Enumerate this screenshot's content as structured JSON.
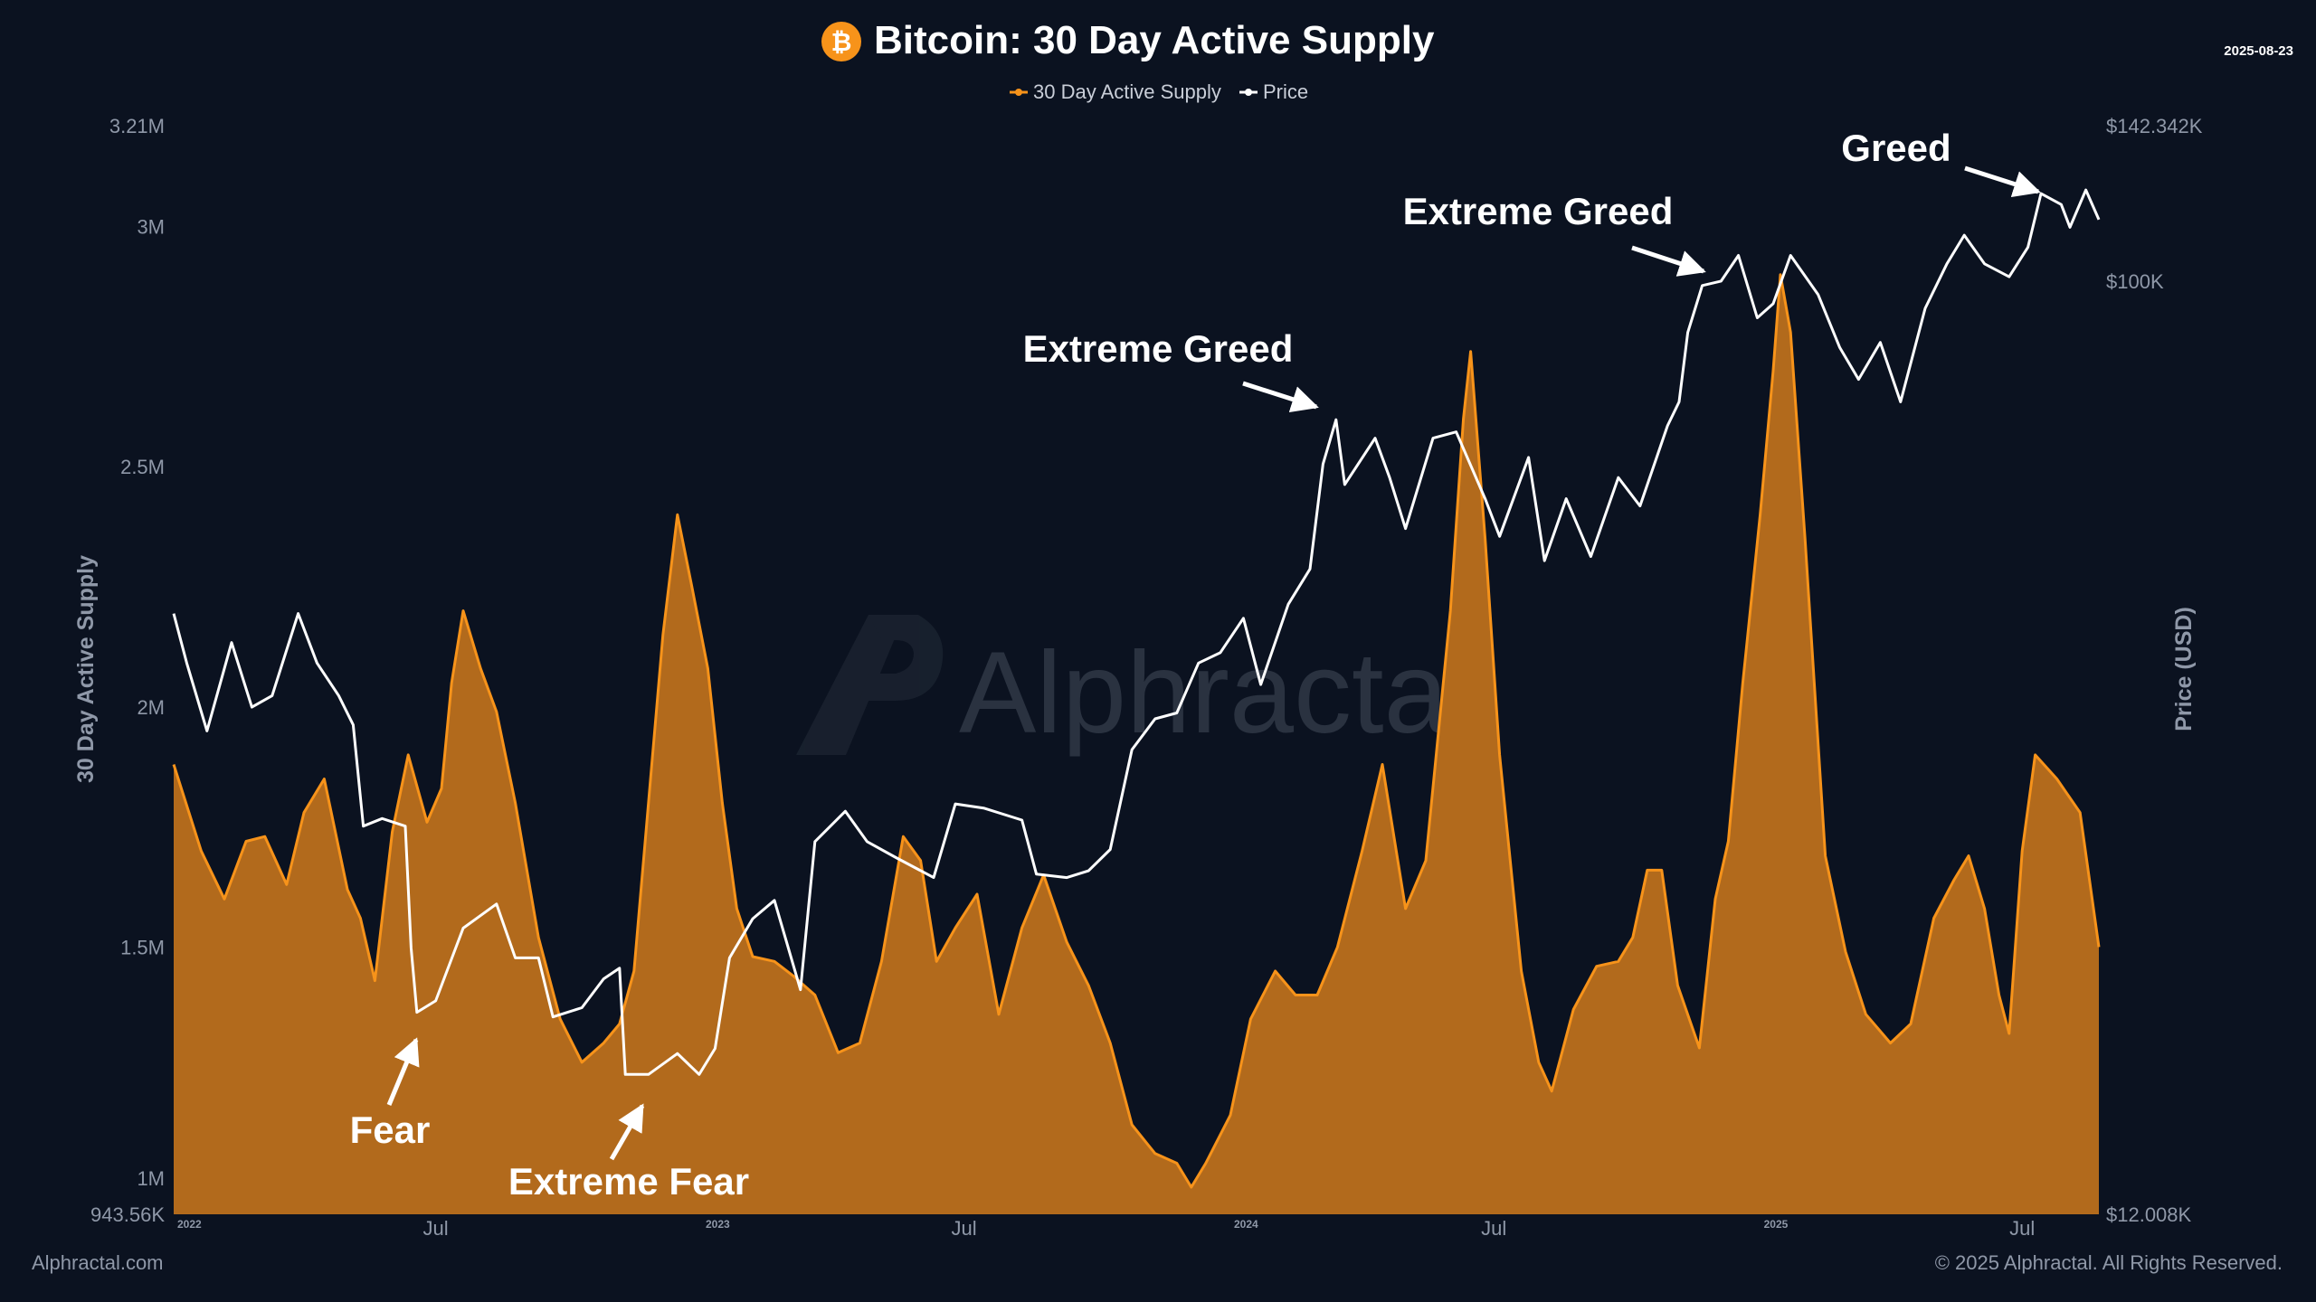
{
  "header": {
    "title": "Bitcoin: 30 Day Active Supply",
    "date": "2025-08-23",
    "icon": "bitcoin-icon"
  },
  "footer": {
    "left": "Alphractal.com",
    "right": "© 2025 Alphractal. All Rights Reserved."
  },
  "watermark": "Alphractal",
  "colors": {
    "background": "#0b1220",
    "supply": "#f7931a",
    "supply_fill": "#b26a1c",
    "price": "#ffffff",
    "axis_text": "#8f98a8"
  },
  "chart_data": {
    "type": "area",
    "title": "Bitcoin: 30 Day Active Supply",
    "ylabel": "30 Day Active Supply",
    "y2label": "Price (USD)",
    "y_ticks": [
      "3.21M",
      "3M",
      "2.5M",
      "2M",
      "1.5M",
      "1M",
      "943.56K"
    ],
    "y_tick_values": [
      3210000,
      3000000,
      2500000,
      2000000,
      1500000,
      1000000,
      943560
    ],
    "ylim": [
      943560,
      3210000
    ],
    "y2_ticks": [
      "$142.342K",
      "$100K",
      "$12.008K"
    ],
    "y2_tick_values": [
      142342,
      100000,
      12008
    ],
    "y2lim": [
      12008,
      142342
    ],
    "y2_scale": "log",
    "x_ticks": [
      "2022",
      "Jul",
      "2023",
      "Jul",
      "2024",
      "Jul",
      "2025",
      "Jul"
    ],
    "x_tick_dates": [
      "2022-01-01",
      "2022-07-01",
      "2023-01-01",
      "2023-07-01",
      "2024-01-01",
      "2024-07-01",
      "2025-01-01",
      "2025-07-01"
    ],
    "xlim": [
      "2022-01-01",
      "2025-08-23"
    ],
    "legend": {
      "placement": "top-center",
      "entries": [
        "30 Day Active Supply",
        "Price"
      ]
    },
    "grid": false,
    "series": [
      {
        "name": "30 Day Active Supply",
        "type": "area",
        "color": "#f7931a",
        "points": [
          [
            "2022-01-01",
            1880000
          ],
          [
            "2022-01-20",
            1700000
          ],
          [
            "2022-02-05",
            1600000
          ],
          [
            "2022-02-20",
            1720000
          ],
          [
            "2022-03-05",
            1730000
          ],
          [
            "2022-03-20",
            1630000
          ],
          [
            "2022-04-01",
            1780000
          ],
          [
            "2022-04-15",
            1850000
          ],
          [
            "2022-05-01",
            1620000
          ],
          [
            "2022-05-10",
            1560000
          ],
          [
            "2022-05-20",
            1430000
          ],
          [
            "2022-06-01",
            1740000
          ],
          [
            "2022-06-12",
            1900000
          ],
          [
            "2022-06-25",
            1760000
          ],
          [
            "2022-07-05",
            1830000
          ],
          [
            "2022-07-12",
            2050000
          ],
          [
            "2022-07-20",
            2200000
          ],
          [
            "2022-08-01",
            2080000
          ],
          [
            "2022-08-12",
            1990000
          ],
          [
            "2022-08-25",
            1800000
          ],
          [
            "2022-09-10",
            1520000
          ],
          [
            "2022-09-25",
            1350000
          ],
          [
            "2022-10-10",
            1260000
          ],
          [
            "2022-10-25",
            1300000
          ],
          [
            "2022-11-05",
            1340000
          ],
          [
            "2022-11-15",
            1450000
          ],
          [
            "2022-11-25",
            1800000
          ],
          [
            "2022-12-05",
            2150000
          ],
          [
            "2022-12-15",
            2400000
          ],
          [
            "2022-12-25",
            2250000
          ],
          [
            "2023-01-05",
            2080000
          ],
          [
            "2023-01-15",
            1800000
          ],
          [
            "2023-01-25",
            1580000
          ],
          [
            "2023-02-05",
            1480000
          ],
          [
            "2023-02-20",
            1470000
          ],
          [
            "2023-03-05",
            1440000
          ],
          [
            "2023-03-20",
            1400000
          ],
          [
            "2023-04-05",
            1280000
          ],
          [
            "2023-04-20",
            1300000
          ],
          [
            "2023-05-05",
            1470000
          ],
          [
            "2023-05-20",
            1730000
          ],
          [
            "2023-06-01",
            1680000
          ],
          [
            "2023-06-12",
            1470000
          ],
          [
            "2023-06-25",
            1540000
          ],
          [
            "2023-07-10",
            1610000
          ],
          [
            "2023-07-25",
            1360000
          ],
          [
            "2023-08-10",
            1540000
          ],
          [
            "2023-08-25",
            1650000
          ],
          [
            "2023-09-10",
            1510000
          ],
          [
            "2023-09-25",
            1420000
          ],
          [
            "2023-10-10",
            1300000
          ],
          [
            "2023-10-25",
            1130000
          ],
          [
            "2023-11-10",
            1070000
          ],
          [
            "2023-11-25",
            1050000
          ],
          [
            "2023-12-05",
            1000000
          ],
          [
            "2023-12-15",
            1050000
          ],
          [
            "2024-01-01",
            1150000
          ],
          [
            "2024-01-15",
            1350000
          ],
          [
            "2024-02-01",
            1450000
          ],
          [
            "2024-02-15",
            1400000
          ],
          [
            "2024-03-01",
            1400000
          ],
          [
            "2024-03-15",
            1500000
          ],
          [
            "2024-04-01",
            1700000
          ],
          [
            "2024-04-15",
            1880000
          ],
          [
            "2024-05-01",
            1580000
          ],
          [
            "2024-05-15",
            1680000
          ],
          [
            "2024-06-01",
            2200000
          ],
          [
            "2024-06-10",
            2600000
          ],
          [
            "2024-06-15",
            2740000
          ],
          [
            "2024-06-25",
            2350000
          ],
          [
            "2024-07-05",
            1900000
          ],
          [
            "2024-07-20",
            1450000
          ],
          [
            "2024-08-01",
            1260000
          ],
          [
            "2024-08-10",
            1200000
          ],
          [
            "2024-08-25",
            1370000
          ],
          [
            "2024-09-10",
            1460000
          ],
          [
            "2024-09-25",
            1470000
          ],
          [
            "2024-10-05",
            1520000
          ],
          [
            "2024-10-15",
            1660000
          ],
          [
            "2024-10-25",
            1660000
          ],
          [
            "2024-11-05",
            1420000
          ],
          [
            "2024-11-20",
            1290000
          ],
          [
            "2024-12-01",
            1600000
          ],
          [
            "2024-12-10",
            1720000
          ],
          [
            "2024-12-20",
            2050000
          ],
          [
            "2025-01-01",
            2400000
          ],
          [
            "2025-01-10",
            2700000
          ],
          [
            "2025-01-15",
            2900000
          ],
          [
            "2025-01-22",
            2780000
          ],
          [
            "2025-02-01",
            2350000
          ],
          [
            "2025-02-15",
            1690000
          ],
          [
            "2025-03-01",
            1490000
          ],
          [
            "2025-03-15",
            1360000
          ],
          [
            "2025-04-01",
            1300000
          ],
          [
            "2025-04-15",
            1340000
          ],
          [
            "2025-05-01",
            1560000
          ],
          [
            "2025-05-15",
            1640000
          ],
          [
            "2025-05-25",
            1690000
          ],
          [
            "2025-06-05",
            1580000
          ],
          [
            "2025-06-15",
            1400000
          ],
          [
            "2025-06-22",
            1320000
          ],
          [
            "2025-07-01",
            1700000
          ],
          [
            "2025-07-10",
            1900000
          ],
          [
            "2025-07-25",
            1850000
          ],
          [
            "2025-08-10",
            1780000
          ],
          [
            "2025-08-23",
            1500000
          ]
        ]
      },
      {
        "name": "Price",
        "type": "line",
        "color": "#ffffff",
        "axis": "right",
        "points": [
          [
            "2022-01-01",
            47000
          ],
          [
            "2022-01-10",
            42000
          ],
          [
            "2022-01-24",
            36000
          ],
          [
            "2022-02-10",
            44000
          ],
          [
            "2022-02-24",
            38000
          ],
          [
            "2022-03-10",
            39000
          ],
          [
            "2022-03-28",
            47000
          ],
          [
            "2022-04-10",
            42000
          ],
          [
            "2022-04-25",
            39000
          ],
          [
            "2022-05-05",
            36500
          ],
          [
            "2022-05-12",
            29000
          ],
          [
            "2022-05-25",
            29500
          ],
          [
            "2022-06-10",
            29000
          ],
          [
            "2022-06-14",
            22000
          ],
          [
            "2022-06-18",
            19000
          ],
          [
            "2022-07-01",
            19500
          ],
          [
            "2022-07-20",
            23000
          ],
          [
            "2022-08-12",
            24300
          ],
          [
            "2022-08-25",
            21500
          ],
          [
            "2022-09-10",
            21500
          ],
          [
            "2022-09-20",
            18800
          ],
          [
            "2022-10-10",
            19200
          ],
          [
            "2022-10-25",
            20500
          ],
          [
            "2022-11-05",
            21000
          ],
          [
            "2022-11-09",
            16500
          ],
          [
            "2022-11-25",
            16500
          ],
          [
            "2022-12-15",
            17300
          ],
          [
            "2022-12-30",
            16500
          ],
          [
            "2023-01-10",
            17500
          ],
          [
            "2023-01-20",
            21500
          ],
          [
            "2023-02-05",
            23500
          ],
          [
            "2023-02-20",
            24500
          ],
          [
            "2023-03-10",
            20000
          ],
          [
            "2023-03-20",
            28000
          ],
          [
            "2023-04-10",
            30000
          ],
          [
            "2023-04-25",
            28000
          ],
          [
            "2023-05-15",
            27000
          ],
          [
            "2023-06-10",
            25800
          ],
          [
            "2023-06-25",
            30500
          ],
          [
            "2023-07-15",
            30200
          ],
          [
            "2023-08-10",
            29400
          ],
          [
            "2023-08-20",
            26000
          ],
          [
            "2023-09-10",
            25800
          ],
          [
            "2023-09-25",
            26200
          ],
          [
            "2023-10-10",
            27500
          ],
          [
            "2023-10-25",
            34500
          ],
          [
            "2023-11-10",
            37000
          ],
          [
            "2023-11-25",
            37500
          ],
          [
            "2023-12-10",
            42000
          ],
          [
            "2023-12-25",
            43000
          ],
          [
            "2024-01-10",
            46500
          ],
          [
            "2024-01-22",
            40000
          ],
          [
            "2024-02-10",
            48000
          ],
          [
            "2024-02-25",
            52000
          ],
          [
            "2024-03-05",
            66000
          ],
          [
            "2024-03-14",
            73000
          ],
          [
            "2024-03-20",
            63000
          ],
          [
            "2024-04-10",
            70000
          ],
          [
            "2024-04-20",
            64000
          ],
          [
            "2024-05-01",
            57000
          ],
          [
            "2024-05-20",
            70000
          ],
          [
            "2024-06-05",
            71000
          ],
          [
            "2024-06-25",
            61000
          ],
          [
            "2024-07-05",
            56000
          ],
          [
            "2024-07-25",
            67000
          ],
          [
            "2024-08-05",
            53000
          ],
          [
            "2024-08-20",
            61000
          ],
          [
            "2024-09-06",
            53500
          ],
          [
            "2024-09-25",
            64000
          ],
          [
            "2024-10-10",
            60000
          ],
          [
            "2024-10-29",
            72000
          ],
          [
            "2024-11-06",
            76000
          ],
          [
            "2024-11-12",
            89000
          ],
          [
            "2024-11-22",
            99000
          ],
          [
            "2024-12-05",
            100000
          ],
          [
            "2024-12-17",
            106000
          ],
          [
            "2024-12-30",
            92000
          ],
          [
            "2025-01-10",
            95000
          ],
          [
            "2025-01-22",
            106000
          ],
          [
            "2025-02-10",
            97000
          ],
          [
            "2025-02-25",
            86000
          ],
          [
            "2025-03-10",
            80000
          ],
          [
            "2025-03-25",
            87000
          ],
          [
            "2025-04-08",
            76000
          ],
          [
            "2025-04-25",
            94000
          ],
          [
            "2025-05-10",
            104000
          ],
          [
            "2025-05-22",
            111000
          ],
          [
            "2025-06-05",
            104000
          ],
          [
            "2025-06-22",
            101000
          ],
          [
            "2025-07-05",
            108000
          ],
          [
            "2025-07-14",
            122000
          ],
          [
            "2025-07-28",
            119000
          ],
          [
            "2025-08-03",
            113000
          ],
          [
            "2025-08-14",
            123000
          ],
          [
            "2025-08-23",
            115000
          ]
        ]
      }
    ],
    "annotations": [
      {
        "text": "Fear",
        "date": "2022-06-18",
        "price": 19000
      },
      {
        "text": "Extreme Fear",
        "date": "2022-11-12",
        "price": 16000
      },
      {
        "text": "Extreme Greed",
        "date": "2024-03-14",
        "price": 70000
      },
      {
        "text": "Extreme Greed",
        "date": "2024-12-17",
        "price": 106000
      },
      {
        "text": "Greed",
        "date": "2025-07-20",
        "price": 122000
      }
    ]
  }
}
